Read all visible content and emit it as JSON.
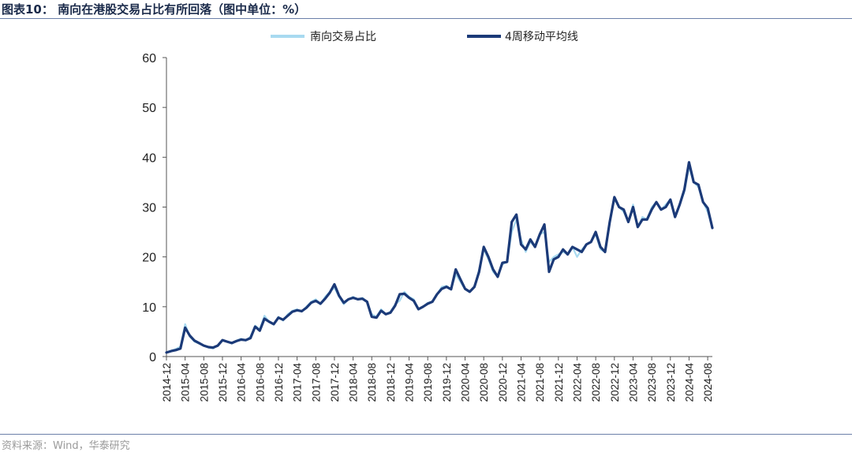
{
  "header": {
    "title": "图表10：  南向在港股交易占比有所回落（图中单位：%）"
  },
  "footer": {
    "source": "资料来源：Wind，华泰研究"
  },
  "colors": {
    "raw": "#a8daf0",
    "avg": "#1b3a78",
    "axis": "#555555"
  },
  "chart_data": {
    "type": "line",
    "title": "",
    "xlabel": "",
    "ylabel": "",
    "ylim": [
      0,
      60
    ],
    "yticks": [
      0,
      10,
      20,
      30,
      40,
      50,
      60
    ],
    "xticks": [
      "2014-12",
      "2015-04",
      "2015-08",
      "2015-12",
      "2016-04",
      "2016-08",
      "2016-12",
      "2017-04",
      "2017-08",
      "2017-12",
      "2018-04",
      "2018-08",
      "2018-12",
      "2019-04",
      "2019-08",
      "2019-12",
      "2020-04",
      "2020-08",
      "2020-12",
      "2021-04",
      "2021-08",
      "2021-12",
      "2022-04",
      "2022-08",
      "2022-12",
      "2023-04",
      "2023-08",
      "2023-12",
      "2024-04",
      "2024-08"
    ],
    "legend_position": "top-center",
    "grid": false,
    "x": [
      "2014-12",
      "2015-01",
      "2015-02",
      "2015-03",
      "2015-04",
      "2015-05",
      "2015-06",
      "2015-07",
      "2015-08",
      "2015-09",
      "2015-10",
      "2015-11",
      "2015-12",
      "2016-01",
      "2016-02",
      "2016-03",
      "2016-04",
      "2016-05",
      "2016-06",
      "2016-07",
      "2016-08",
      "2016-09",
      "2016-10",
      "2016-11",
      "2016-12",
      "2017-01",
      "2017-02",
      "2017-03",
      "2017-04",
      "2017-05",
      "2017-06",
      "2017-07",
      "2017-08",
      "2017-09",
      "2017-10",
      "2017-11",
      "2017-12",
      "2018-01",
      "2018-02",
      "2018-03",
      "2018-04",
      "2018-05",
      "2018-06",
      "2018-07",
      "2018-08",
      "2018-09",
      "2018-10",
      "2018-11",
      "2018-12",
      "2019-01",
      "2019-02",
      "2019-03",
      "2019-04",
      "2019-05",
      "2019-06",
      "2019-07",
      "2019-08",
      "2019-09",
      "2019-10",
      "2019-11",
      "2019-12",
      "2020-01",
      "2020-02",
      "2020-03",
      "2020-04",
      "2020-05",
      "2020-06",
      "2020-07",
      "2020-08",
      "2020-09",
      "2020-10",
      "2020-11",
      "2020-12",
      "2021-01",
      "2021-02",
      "2021-03",
      "2021-04",
      "2021-05",
      "2021-06",
      "2021-07",
      "2021-08",
      "2021-09",
      "2021-10",
      "2021-11",
      "2021-12",
      "2022-01",
      "2022-02",
      "2022-03",
      "2022-04",
      "2022-05",
      "2022-06",
      "2022-07",
      "2022-08",
      "2022-09",
      "2022-10",
      "2022-11",
      "2022-12",
      "2023-01",
      "2023-02",
      "2023-03",
      "2023-04",
      "2023-05",
      "2023-06",
      "2023-07",
      "2023-08",
      "2023-09",
      "2023-10",
      "2023-11",
      "2023-12",
      "2024-01",
      "2024-02",
      "2024-03",
      "2024-04",
      "2024-05",
      "2024-06",
      "2024-07",
      "2024-08",
      "2024-09"
    ],
    "series": [
      {
        "name": "南向交易占比",
        "values": [
          0.8,
          1.2,
          1.5,
          2.0,
          6.5,
          4.0,
          3.0,
          2.6,
          2.2,
          1.8,
          1.6,
          2.3,
          3.2,
          3.0,
          2.6,
          3.2,
          3.6,
          3.2,
          4.0,
          6.2,
          5.5,
          8.2,
          7.0,
          6.4,
          8.0,
          7.2,
          8.5,
          9.2,
          9.5,
          9.0,
          10.0,
          11.0,
          11.5,
          10.5,
          12.0,
          13.0,
          13.8,
          12.0,
          10.5,
          11.5,
          12.0,
          11.5,
          11.8,
          11.0,
          8.5,
          8.0,
          9.5,
          8.5,
          9.0,
          10.5,
          11.2,
          13.0,
          12.0,
          11.5,
          9.5,
          10.0,
          10.8,
          11.0,
          12.5,
          14.0,
          14.2,
          13.5,
          16.5,
          15.0,
          13.5,
          13.0,
          14.0,
          17.5,
          21.5,
          19.5,
          17.0,
          16.0,
          18.5,
          19.0,
          25.0,
          27.5,
          23.5,
          21.0,
          23.0,
          22.0,
          24.5,
          25.0,
          19.0,
          20.0,
          20.5,
          21.0,
          20.5,
          22.0,
          20.0,
          21.5,
          22.5,
          23.0,
          24.5,
          21.5,
          21.0,
          27.0,
          31.5,
          30.0,
          29.0,
          27.0,
          30.5,
          26.0,
          28.0,
          27.5,
          30.0,
          31.0,
          29.5,
          30.5,
          31.5,
          28.0,
          30.5,
          33.0,
          38.0,
          35.0,
          34.0,
          31.0,
          29.0,
          26.0
        ]
      },
      {
        "name": "4周移动平均线",
        "values": [
          0.8,
          1.1,
          1.3,
          1.6,
          5.8,
          4.2,
          3.2,
          2.7,
          2.2,
          1.9,
          1.8,
          2.2,
          3.3,
          3.0,
          2.7,
          3.1,
          3.4,
          3.3,
          3.7,
          6.0,
          5.2,
          7.6,
          7.0,
          6.5,
          7.8,
          7.4,
          8.2,
          9.0,
          9.3,
          9.1,
          9.8,
          10.8,
          11.2,
          10.6,
          11.6,
          12.8,
          14.5,
          12.2,
          10.8,
          11.5,
          11.8,
          11.5,
          11.6,
          11.0,
          8.0,
          7.8,
          9.2,
          8.5,
          8.8,
          10.2,
          12.5,
          12.6,
          11.8,
          11.2,
          9.5,
          10.0,
          10.6,
          11.0,
          12.5,
          13.6,
          14.0,
          13.5,
          17.5,
          15.5,
          13.6,
          13.0,
          14.0,
          17.0,
          22.0,
          20.0,
          17.5,
          16.0,
          18.8,
          19.0,
          27.0,
          28.5,
          22.5,
          21.5,
          23.5,
          22.0,
          24.5,
          26.5,
          17.0,
          19.5,
          20.0,
          21.5,
          20.5,
          22.0,
          21.5,
          21.0,
          22.5,
          23.0,
          25.0,
          22.0,
          21.0,
          27.0,
          32.0,
          30.0,
          29.5,
          27.0,
          30.0,
          26.0,
          27.5,
          27.5,
          29.5,
          31.0,
          29.5,
          30.0,
          31.5,
          28.0,
          30.5,
          33.5,
          39.0,
          35.0,
          34.5,
          31.0,
          29.8,
          25.8
        ]
      }
    ]
  }
}
